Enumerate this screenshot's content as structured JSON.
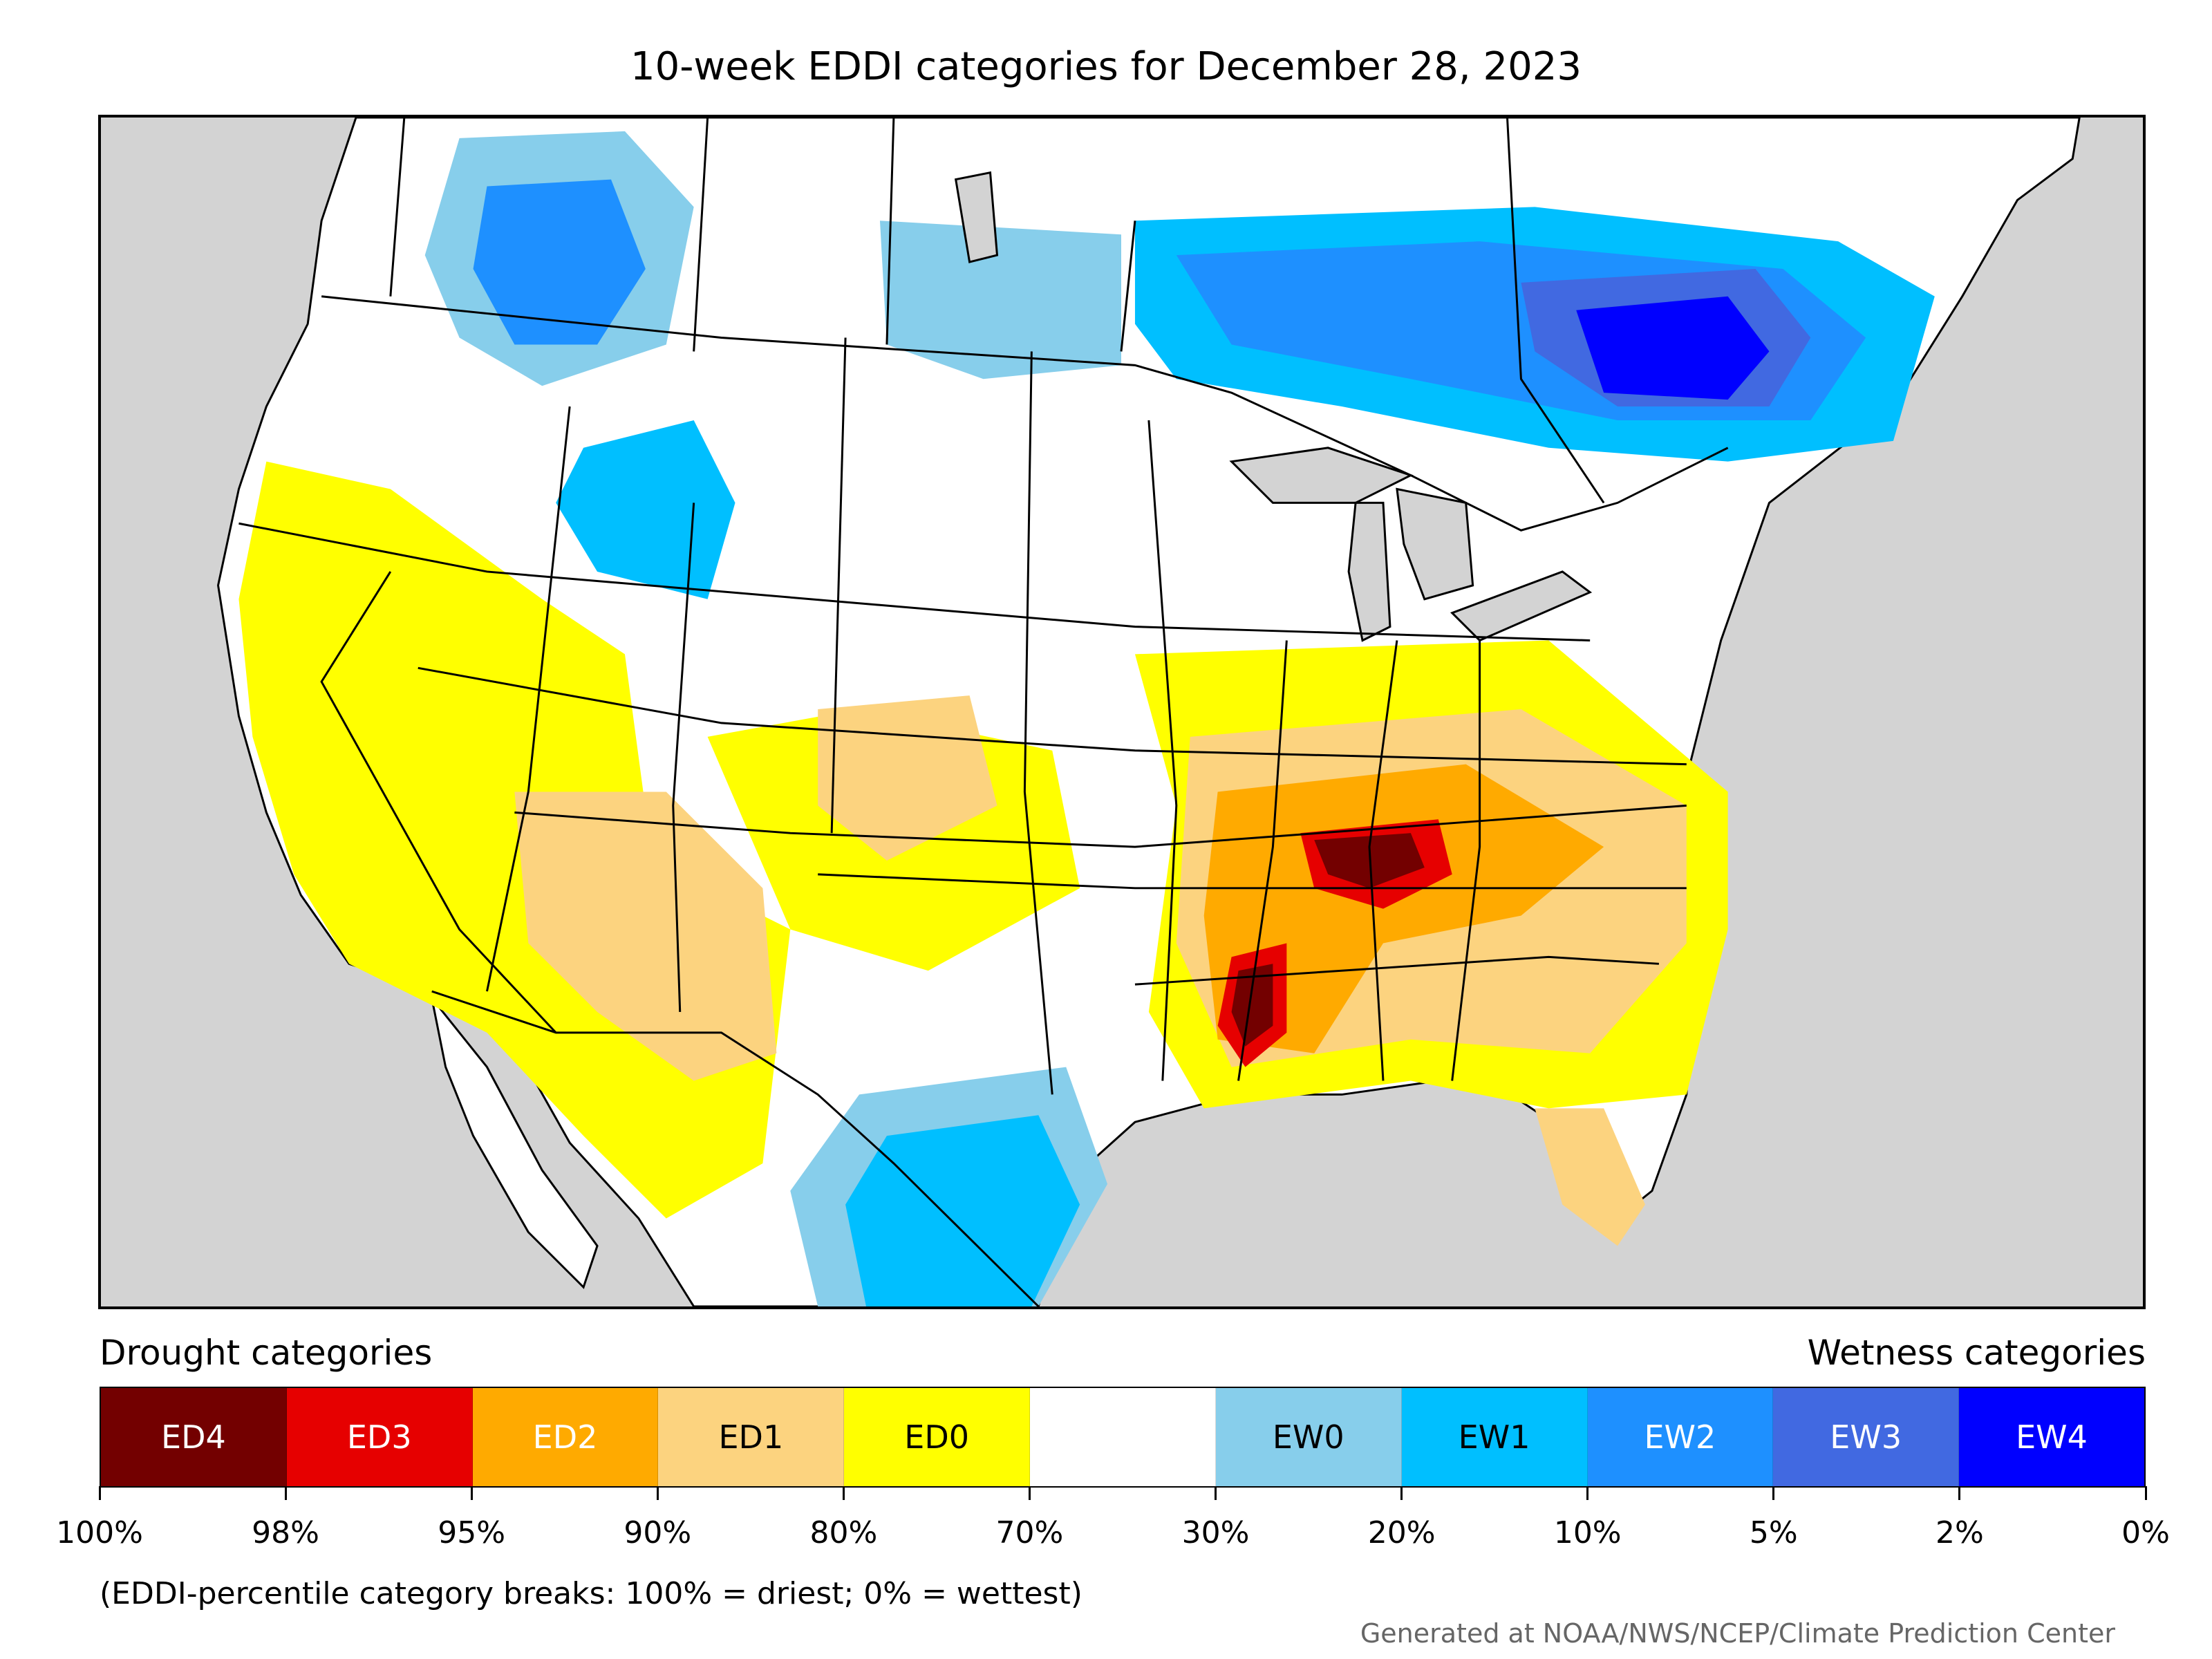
{
  "title": "10-week EDDI categories for December 28, 2023",
  "legend": {
    "drought_heading": "Drought categories",
    "wetness_heading": "Wetness categories",
    "categories": [
      {
        "label": "ED4",
        "color": "#730000",
        "text_color": "#ffffff"
      },
      {
        "label": "ED3",
        "color": "#e60000",
        "text_color": "#ffffff"
      },
      {
        "label": "ED2",
        "color": "#ffaa00",
        "text_color": "#ffffff"
      },
      {
        "label": "ED1",
        "color": "#fcd37f",
        "text_color": "#000000"
      },
      {
        "label": "ED0",
        "color": "#ffff00",
        "text_color": "#000000"
      },
      {
        "label": "",
        "color": "#ffffff",
        "text_color": "#000000"
      },
      {
        "label": "EW0",
        "color": "#87ceeb",
        "text_color": "#000000"
      },
      {
        "label": "EW1",
        "color": "#00bfff",
        "text_color": "#000000"
      },
      {
        "label": "EW2",
        "color": "#1e90ff",
        "text_color": "#ffffff"
      },
      {
        "label": "EW3",
        "color": "#4169e1",
        "text_color": "#ffffff"
      },
      {
        "label": "EW4",
        "color": "#0000ff",
        "text_color": "#ffffff"
      }
    ],
    "tick_labels": [
      "100%",
      "98%",
      "95%",
      "90%",
      "80%",
      "70%",
      "30%",
      "20%",
      "10%",
      "5%",
      "2%",
      "0%"
    ],
    "note": "(EDDI-percentile category breaks: 100% = driest; 0% = wettest)"
  },
  "credit": "Generated at NOAA/NWS/NCEP/Climate Prediction Center",
  "colors": {
    "land": "#ffffff",
    "water": "#d3d3d3",
    "border": "#000000"
  }
}
